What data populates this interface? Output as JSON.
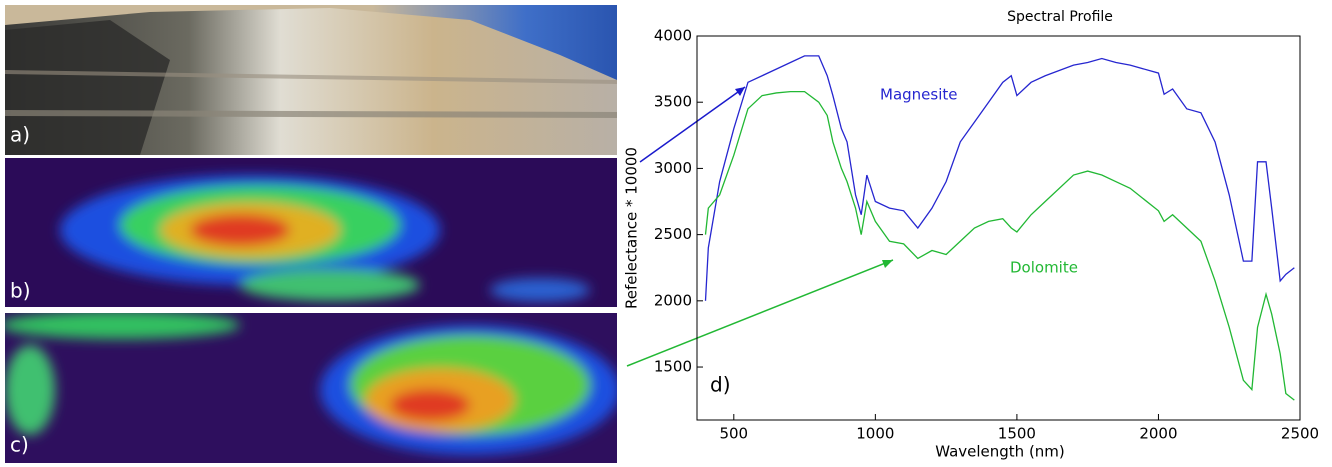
{
  "panels": [
    "a)",
    "b)",
    "c)"
  ],
  "chart_data": {
    "type": "line",
    "title": "Spectral Profile",
    "panel_label": "d)",
    "xlabel": "Wavelength (nm)",
    "ylabel": "Refelectance * 10000",
    "x": [
      400,
      410,
      450,
      500,
      550,
      600,
      650,
      700,
      750,
      800,
      830,
      850,
      880,
      900,
      930,
      950,
      970,
      1000,
      1050,
      1100,
      1150,
      1200,
      1250,
      1300,
      1350,
      1400,
      1450,
      1480,
      1500,
      1550,
      1600,
      1700,
      1750,
      1800,
      1850,
      1900,
      2000,
      2020,
      2050,
      2100,
      2150,
      2200,
      2250,
      2300,
      2330,
      2350,
      2380,
      2400,
      2430,
      2450,
      2480
    ],
    "series": [
      {
        "name": "Magnesite",
        "color": "#2626d0",
        "values": [
          2000,
          2400,
          2900,
          3300,
          3650,
          3700,
          3750,
          3800,
          3850,
          3850,
          3700,
          3550,
          3300,
          3200,
          2800,
          2650,
          2950,
          2750,
          2700,
          2680,
          2550,
          2700,
          2900,
          3200,
          3350,
          3500,
          3650,
          3700,
          3550,
          3650,
          3700,
          3780,
          3800,
          3830,
          3800,
          3780,
          3720,
          3560,
          3600,
          3450,
          3420,
          3200,
          2800,
          2300,
          2300,
          3050,
          3050,
          2700,
          2150,
          2200,
          2250
        ]
      },
      {
        "name": "Dolomite",
        "color": "#22b834",
        "values": [
          2500,
          2700,
          2800,
          3100,
          3450,
          3550,
          3570,
          3580,
          3580,
          3500,
          3400,
          3200,
          3000,
          2900,
          2700,
          2500,
          2750,
          2600,
          2450,
          2430,
          2320,
          2380,
          2350,
          2450,
          2550,
          2600,
          2620,
          2550,
          2520,
          2650,
          2750,
          2950,
          2980,
          2950,
          2900,
          2850,
          2680,
          2600,
          2650,
          2550,
          2450,
          2150,
          1800,
          1400,
          1330,
          1800,
          2050,
          1900,
          1600,
          1300,
          1250
        ]
      }
    ],
    "xlim": [
      370,
      2500
    ],
    "ylim": [
      1100,
      4000
    ],
    "xticks": [
      500,
      1000,
      1500,
      2000,
      2500
    ],
    "yticks": [
      1500,
      2000,
      2500,
      3000,
      3500,
      4000
    ]
  }
}
